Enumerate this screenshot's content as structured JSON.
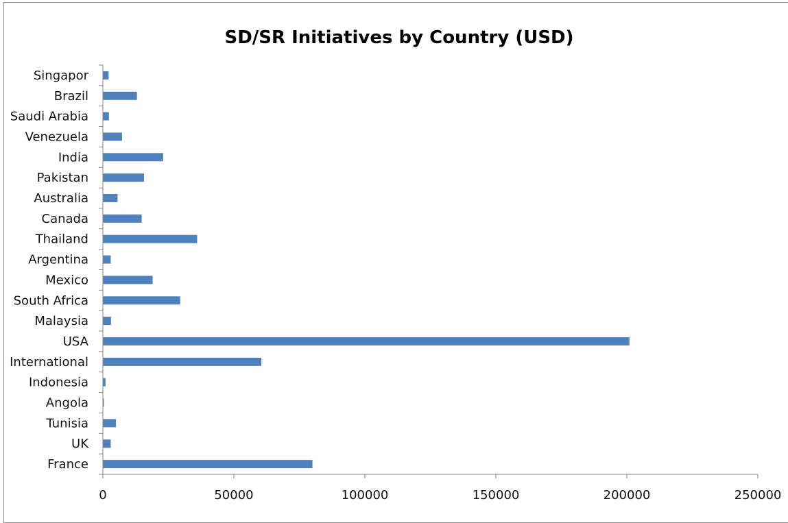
{
  "chart_data": {
    "type": "bar",
    "orientation": "horizontal",
    "title": "SD/SR Initiatives by Country (USD)",
    "xlabel": "",
    "ylabel": "",
    "categories": [
      "Singapor",
      "Brazil",
      "Saudi Arabia",
      "Venezuela",
      "India",
      "Pakistan",
      "Australia",
      "Canada",
      "Thailand",
      "Argentina",
      "Mexico",
      "South Africa",
      "Malaysia",
      "USA",
      "International",
      "Indonesia",
      "Angola",
      "Tunisia",
      "UK",
      "France"
    ],
    "values": [
      2200,
      13000,
      2300,
      7300,
      23000,
      15700,
      5600,
      14800,
      36000,
      3000,
      19000,
      29500,
      3100,
      201000,
      60500,
      1000,
      400,
      5000,
      3000,
      80000
    ],
    "xlim": [
      0,
      250000
    ],
    "x_ticks": [
      "0",
      "50000",
      "100000",
      "150000",
      "200000",
      "250000"
    ],
    "grid": false,
    "legend": "none",
    "bar_color": "#4f81bd",
    "axis_color": "#868686"
  }
}
